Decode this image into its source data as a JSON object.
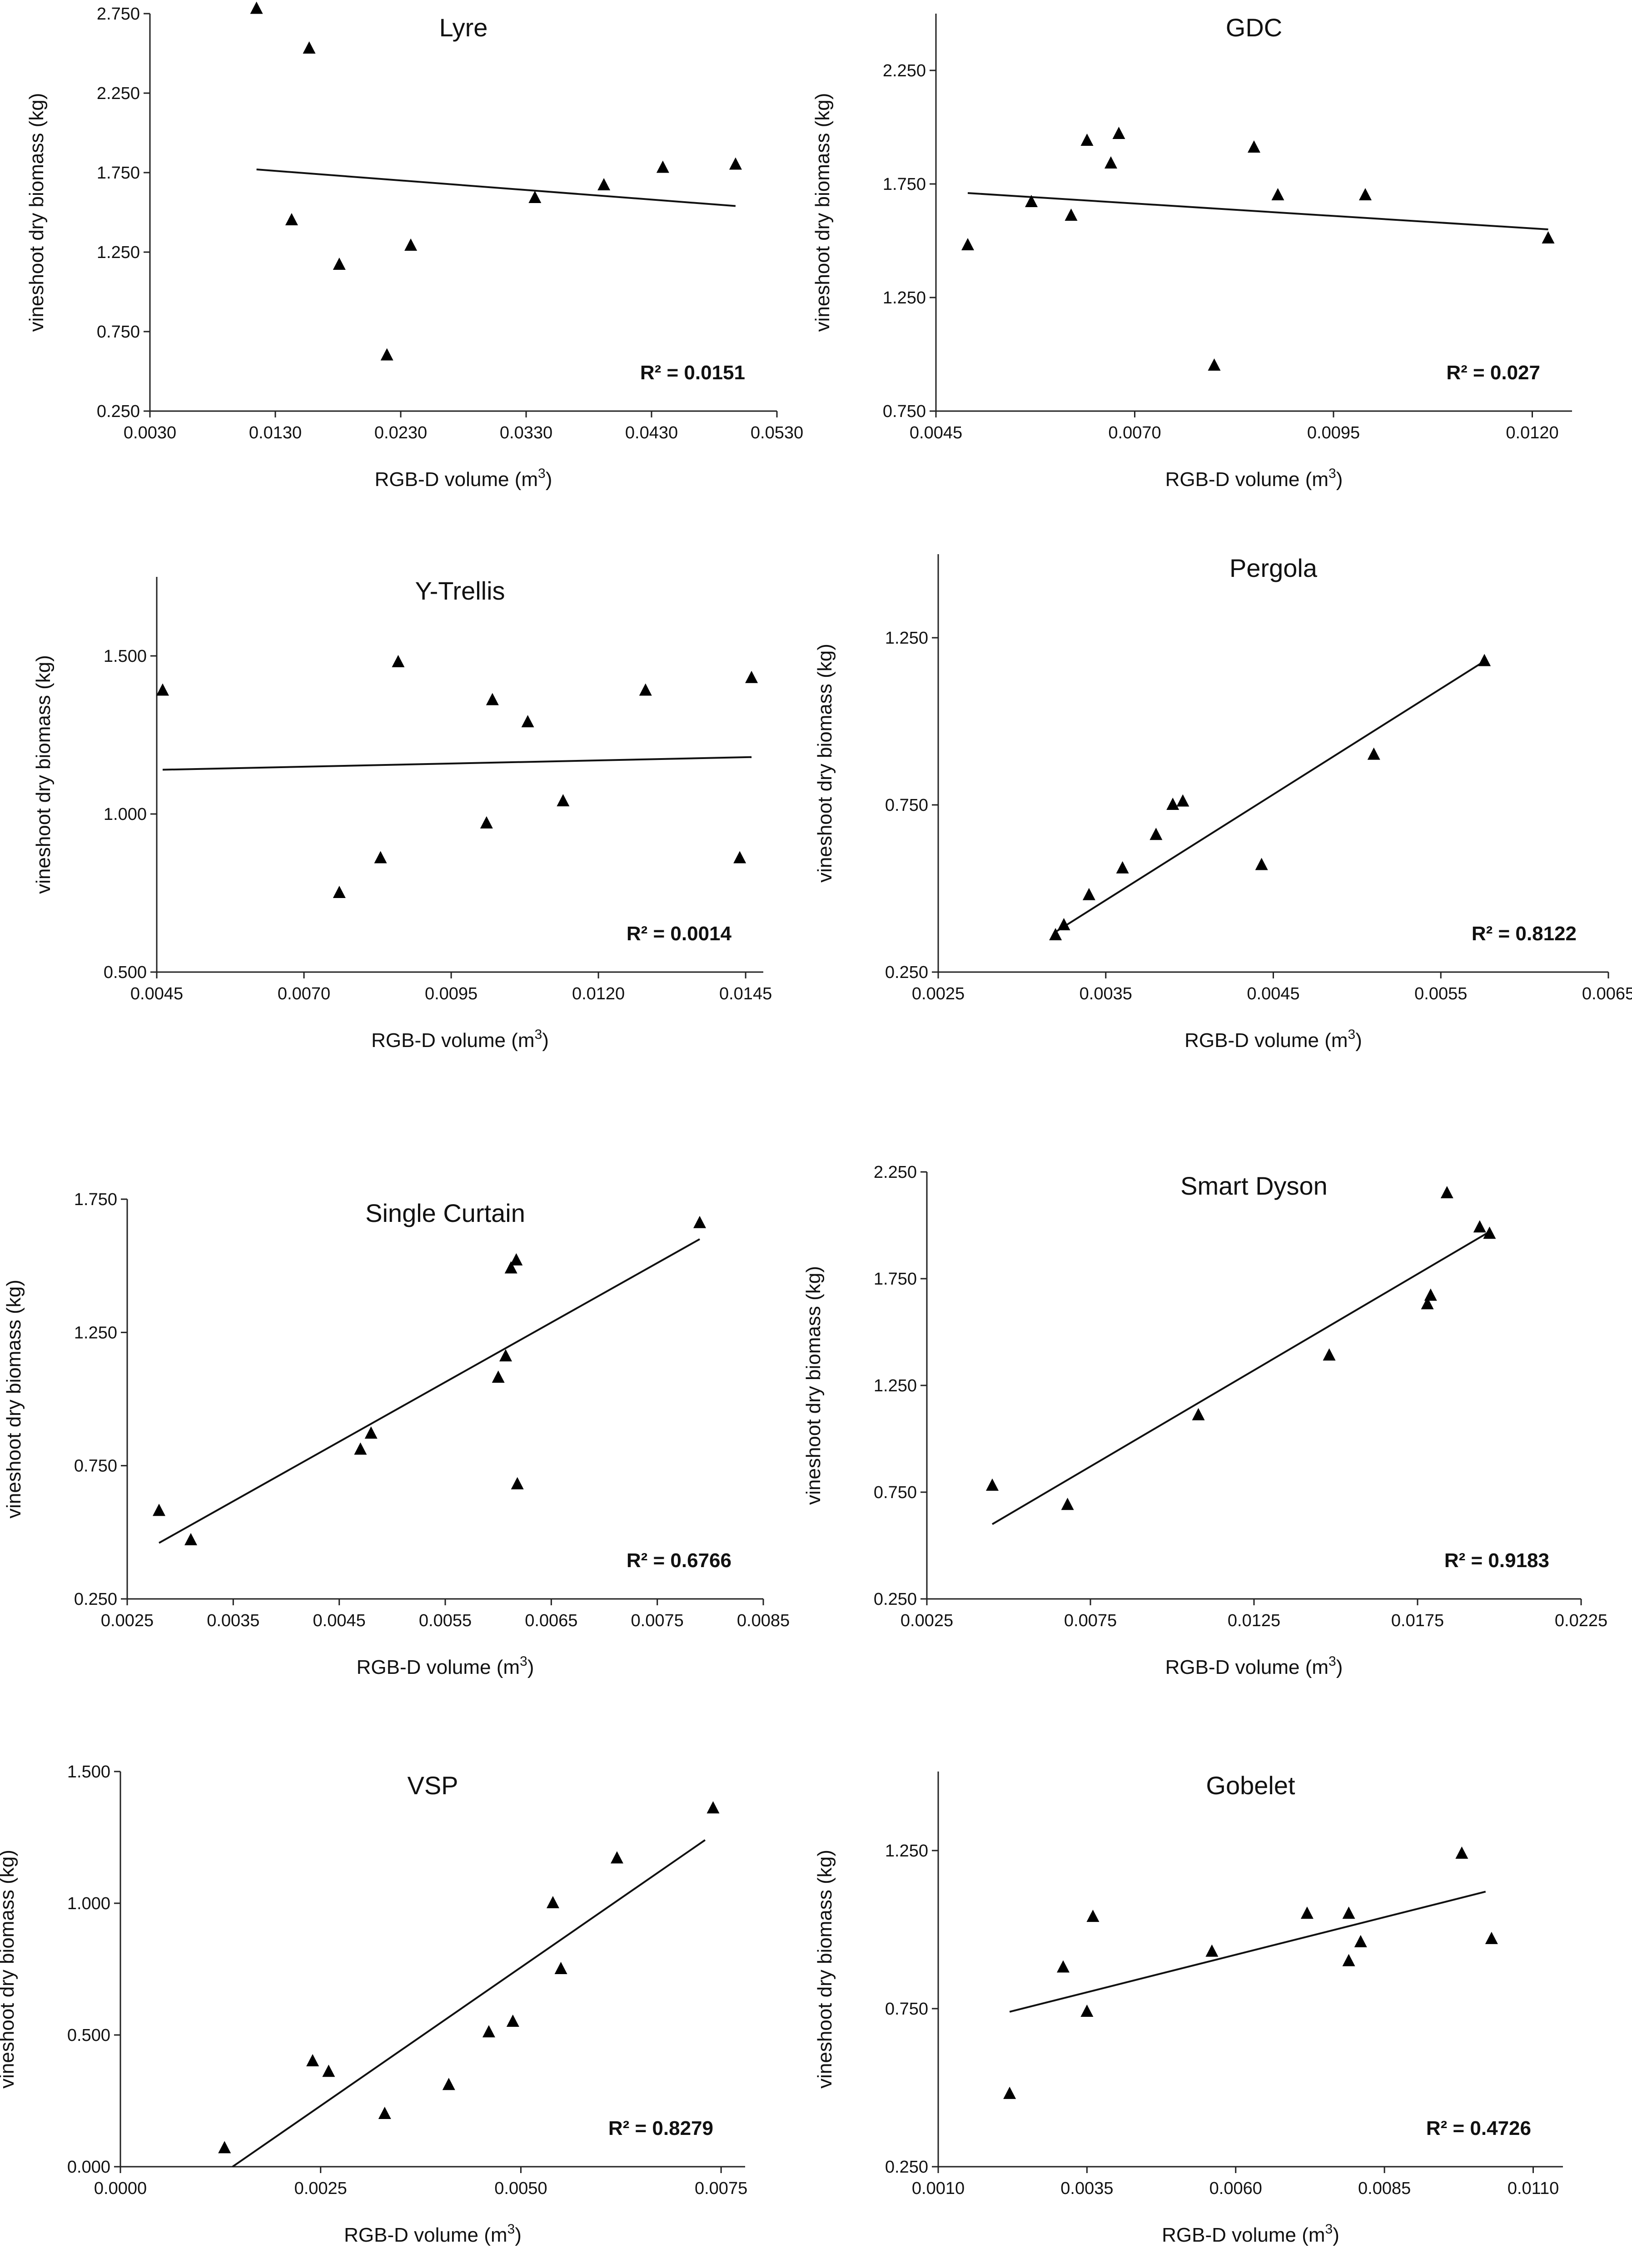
{
  "figure": {
    "panel_layout": "4 rows x 2 columns"
  },
  "chart_data": [
    {
      "id": "lyre",
      "type": "scatter",
      "title": "Lyre",
      "xlabel": "RGB-D   volume (m",
      "xlabel_sup": "3",
      "xlabel_close": ")",
      "ylabel": "vineshoot dry biomass (kg)",
      "xlim": [
        0.003,
        0.053
      ],
      "ylim": [
        0.25,
        2.75
      ],
      "xticks": [
        0.003,
        0.013,
        0.023,
        0.033,
        0.043,
        0.053
      ],
      "xtick_labels": [
        "0.0030",
        "0.0130",
        "0.0230",
        "0.0330",
        "0.0430",
        "0.0530"
      ],
      "yticks": [
        0.25,
        0.75,
        1.25,
        1.75,
        2.25,
        2.75
      ],
      "ytick_labels": [
        "0.250",
        "0.750",
        "1.250",
        "1.750",
        "2.250",
        "2.750"
      ],
      "points": [
        [
          0.0115,
          2.78
        ],
        [
          0.0143,
          1.45
        ],
        [
          0.0157,
          2.53
        ],
        [
          0.0181,
          1.17
        ],
        [
          0.0219,
          0.6
        ],
        [
          0.0238,
          1.29
        ],
        [
          0.0337,
          1.59
        ],
        [
          0.0392,
          1.67
        ],
        [
          0.0439,
          1.78
        ],
        [
          0.0497,
          1.8
        ]
      ],
      "trendline": [
        [
          0.0115,
          1.77
        ],
        [
          0.0497,
          1.54
        ]
      ],
      "r2_label": "R² = 0.0151",
      "r2_position": "lower-right"
    },
    {
      "id": "gdc",
      "type": "scatter",
      "title": "GDC",
      "xlabel": "RGB-D   volume (m",
      "xlabel_sup": "3",
      "xlabel_close": ")",
      "ylabel": "vineshoot dry biomass (kg)",
      "xlim": [
        0.0045,
        0.0125
      ],
      "ylim": [
        0.75,
        2.5
      ],
      "xticks": [
        0.0045,
        0.007,
        0.0095,
        0.012
      ],
      "xtick_labels": [
        "0.0045",
        "0.0070",
        "0.0095",
        "0.0120"
      ],
      "yticks": [
        0.75,
        1.25,
        1.75,
        2.25
      ],
      "ytick_labels": [
        "0.750",
        "1.250",
        "1.750",
        "2.250"
      ],
      "points": [
        [
          0.0049,
          1.48
        ],
        [
          0.0057,
          1.67
        ],
        [
          0.0062,
          1.61
        ],
        [
          0.0064,
          1.94
        ],
        [
          0.0067,
          1.84
        ],
        [
          0.0068,
          1.97
        ],
        [
          0.008,
          0.95
        ],
        [
          0.0085,
          1.91
        ],
        [
          0.0088,
          1.7
        ],
        [
          0.0099,
          1.7
        ],
        [
          0.0122,
          1.51
        ]
      ],
      "trendline": [
        [
          0.0049,
          1.71
        ],
        [
          0.0122,
          1.55
        ]
      ],
      "r2_label": "R² = 0.027",
      "r2_position": "lower-right"
    },
    {
      "id": "y-trellis",
      "type": "scatter",
      "title": "Y-Trellis",
      "xlabel": "RGB-D   volume (m",
      "xlabel_sup": "3",
      "xlabel_close": ")",
      "ylabel": "vineshoot dry biomass (kg)",
      "xlim": [
        0.0045,
        0.0148
      ],
      "ylim": [
        0.5,
        1.75
      ],
      "xticks": [
        0.0045,
        0.007,
        0.0095,
        0.012,
        0.0145
      ],
      "xtick_labels": [
        "0.0045",
        "0.0070",
        "0.0095",
        "0.0120",
        "0.0145"
      ],
      "yticks": [
        0.5,
        1.0,
        1.5
      ],
      "ytick_labels": [
        "0.500",
        "1.000",
        "1.500"
      ],
      "points": [
        [
          0.0046,
          1.39
        ],
        [
          0.0076,
          0.75
        ],
        [
          0.0083,
          0.86
        ],
        [
          0.0086,
          1.48
        ],
        [
          0.0101,
          0.97
        ],
        [
          0.0102,
          1.36
        ],
        [
          0.0108,
          1.29
        ],
        [
          0.0114,
          1.04
        ],
        [
          0.0128,
          1.39
        ],
        [
          0.0144,
          0.86
        ],
        [
          0.0146,
          1.43
        ]
      ],
      "trendline": [
        [
          0.0046,
          1.14
        ],
        [
          0.0146,
          1.18
        ]
      ],
      "r2_label": "R² = 0.0014",
      "r2_position": "lower-right"
    },
    {
      "id": "pergola",
      "type": "scatter",
      "title": "Pergola",
      "xlabel": "RGB-D   volume (m",
      "xlabel_sup": "3",
      "xlabel_close": ")",
      "ylabel": "vineshoot dry biomass (kg)",
      "xlim": [
        0.0025,
        0.0065
      ],
      "ylim": [
        0.25,
        1.5
      ],
      "xticks": [
        0.0025,
        0.0035,
        0.0045,
        0.0055,
        0.0065
      ],
      "xtick_labels": [
        "0.0025",
        "0.0035",
        "0.0045",
        "0.0055",
        "0.0065"
      ],
      "yticks": [
        0.25,
        0.75,
        1.25
      ],
      "ytick_labels": [
        "0.250",
        "0.750",
        "1.250"
      ],
      "points": [
        [
          0.0032,
          0.36
        ],
        [
          0.00325,
          0.39
        ],
        [
          0.0034,
          0.48
        ],
        [
          0.0036,
          0.56
        ],
        [
          0.0038,
          0.66
        ],
        [
          0.0039,
          0.75
        ],
        [
          0.00396,
          0.76
        ],
        [
          0.00443,
          0.57
        ],
        [
          0.0051,
          0.9
        ],
        [
          0.00576,
          1.18
        ]
      ],
      "trendline": [
        [
          0.0032,
          0.37
        ],
        [
          0.00576,
          1.18
        ]
      ],
      "r2_label": "R² = 0.8122",
      "r2_position": "lower-right"
    },
    {
      "id": "single-curtain",
      "type": "scatter",
      "title": "Single Curtain",
      "xlabel": "RGB-D   volume (m",
      "xlabel_sup": "3",
      "xlabel_close": ")",
      "ylabel": "vineshoot dry biomass (kg)",
      "xlim": [
        0.0025,
        0.0085
      ],
      "ylim": [
        0.25,
        1.75
      ],
      "xticks": [
        0.0025,
        0.0035,
        0.0045,
        0.0055,
        0.0065,
        0.0075,
        0.0085
      ],
      "xtick_labels": [
        "0.0025",
        "0.0035",
        "0.0045",
        "0.0055",
        "0.0065",
        "0.0075",
        "0.0085"
      ],
      "yticks": [
        0.25,
        0.75,
        1.25,
        1.75
      ],
      "ytick_labels": [
        "0.250",
        "0.750",
        "1.250",
        "1.750"
      ],
      "points": [
        [
          0.0028,
          0.58
        ],
        [
          0.0031,
          0.47
        ],
        [
          0.0047,
          0.81
        ],
        [
          0.0048,
          0.87
        ],
        [
          0.006,
          1.08
        ],
        [
          0.00607,
          1.16
        ],
        [
          0.00612,
          1.49
        ],
        [
          0.00617,
          1.52
        ],
        [
          0.00618,
          0.68
        ],
        [
          0.0079,
          1.66
        ]
      ],
      "trendline": [
        [
          0.0028,
          0.46
        ],
        [
          0.0079,
          1.6
        ]
      ],
      "r2_label": "R² = 0.6766",
      "r2_position": "lower-right"
    },
    {
      "id": "smart-dyson",
      "type": "scatter",
      "title": "Smart Dyson",
      "xlabel": "RGB-D   volume (m",
      "xlabel_sup": "3",
      "xlabel_close": ")",
      "ylabel": "vineshoot dry biomass (kg)",
      "xlim": [
        0.0025,
        0.0225
      ],
      "ylim": [
        0.25,
        2.25
      ],
      "xticks": [
        0.0025,
        0.0075,
        0.0125,
        0.0175,
        0.0225
      ],
      "xtick_labels": [
        "0.0025",
        "0.0075",
        "0.0125",
        "0.0175",
        "0.0225"
      ],
      "yticks": [
        0.25,
        0.75,
        1.25,
        1.75,
        2.25
      ],
      "ytick_labels": [
        "0.250",
        "0.750",
        "1.250",
        "1.750",
        "2.250"
      ],
      "points": [
        [
          0.0045,
          0.78
        ],
        [
          0.0068,
          0.69
        ],
        [
          0.0108,
          1.11
        ],
        [
          0.0148,
          1.39
        ],
        [
          0.0178,
          1.63
        ],
        [
          0.0179,
          1.67
        ],
        [
          0.0184,
          2.15
        ],
        [
          0.0194,
          1.99
        ],
        [
          0.0197,
          1.96
        ]
      ],
      "trendline": [
        [
          0.0045,
          0.6
        ],
        [
          0.0197,
          1.97
        ]
      ],
      "r2_label": "R² = 0.9183",
      "r2_position": "lower-right"
    },
    {
      "id": "vsp",
      "type": "scatter",
      "title": "VSP",
      "xlabel": "RGB-D   volume (m",
      "xlabel_sup": "3",
      "xlabel_close": ")",
      "ylabel": "vineshoot dry biomass (kg)",
      "xlim": [
        0.0,
        0.0078
      ],
      "ylim": [
        0.0,
        1.5
      ],
      "xticks": [
        0.0,
        0.0025,
        0.005,
        0.0075
      ],
      "xtick_labels": [
        "0.0000",
        "0.0025",
        "0.0050",
        "0.0075"
      ],
      "yticks": [
        0.0,
        0.5,
        1.0,
        1.5
      ],
      "ytick_labels": [
        "0.000",
        "0.500",
        "1.000",
        "1.500"
      ],
      "points": [
        [
          0.0013,
          0.07
        ],
        [
          0.0024,
          0.4
        ],
        [
          0.0026,
          0.36
        ],
        [
          0.0033,
          0.2
        ],
        [
          0.0041,
          0.31
        ],
        [
          0.0046,
          0.51
        ],
        [
          0.0049,
          0.55
        ],
        [
          0.0054,
          1.0
        ],
        [
          0.0055,
          0.75
        ],
        [
          0.0062,
          1.17
        ],
        [
          0.0074,
          1.36
        ]
      ],
      "trendline": [
        [
          0.0014,
          0.0
        ],
        [
          0.0073,
          1.24
        ]
      ],
      "r2_label": "R² = 0.8279",
      "r2_position": "lower-right"
    },
    {
      "id": "gobelet",
      "type": "scatter",
      "title": "Gobelet",
      "xlabel": "RGB-D   volume (m",
      "xlabel_sup": "3",
      "xlabel_close": ")",
      "ylabel": "vineshoot dry biomass (kg)",
      "xlim": [
        0.001,
        0.0115
      ],
      "ylim": [
        0.25,
        1.5
      ],
      "xticks": [
        0.001,
        0.0035,
        0.006,
        0.0085,
        0.011
      ],
      "xtick_labels": [
        "0.0010",
        "0.0035",
        "0.0060",
        "0.0085",
        "0.0110"
      ],
      "yticks": [
        0.25,
        0.75,
        1.25
      ],
      "ytick_labels": [
        "0.250",
        "0.750",
        "1.250"
      ],
      "points": [
        [
          0.0022,
          0.48
        ],
        [
          0.0031,
          0.88
        ],
        [
          0.0035,
          0.74
        ],
        [
          0.0036,
          1.04
        ],
        [
          0.0056,
          0.93
        ],
        [
          0.0072,
          1.05
        ],
        [
          0.0079,
          1.05
        ],
        [
          0.0079,
          0.9
        ],
        [
          0.0081,
          0.96
        ],
        [
          0.0098,
          1.24
        ],
        [
          0.0103,
          0.97
        ]
      ],
      "trendline": [
        [
          0.0022,
          0.74
        ],
        [
          0.0102,
          1.12
        ]
      ],
      "r2_label": "R² = 0.4726",
      "r2_position": "lower-right"
    }
  ]
}
